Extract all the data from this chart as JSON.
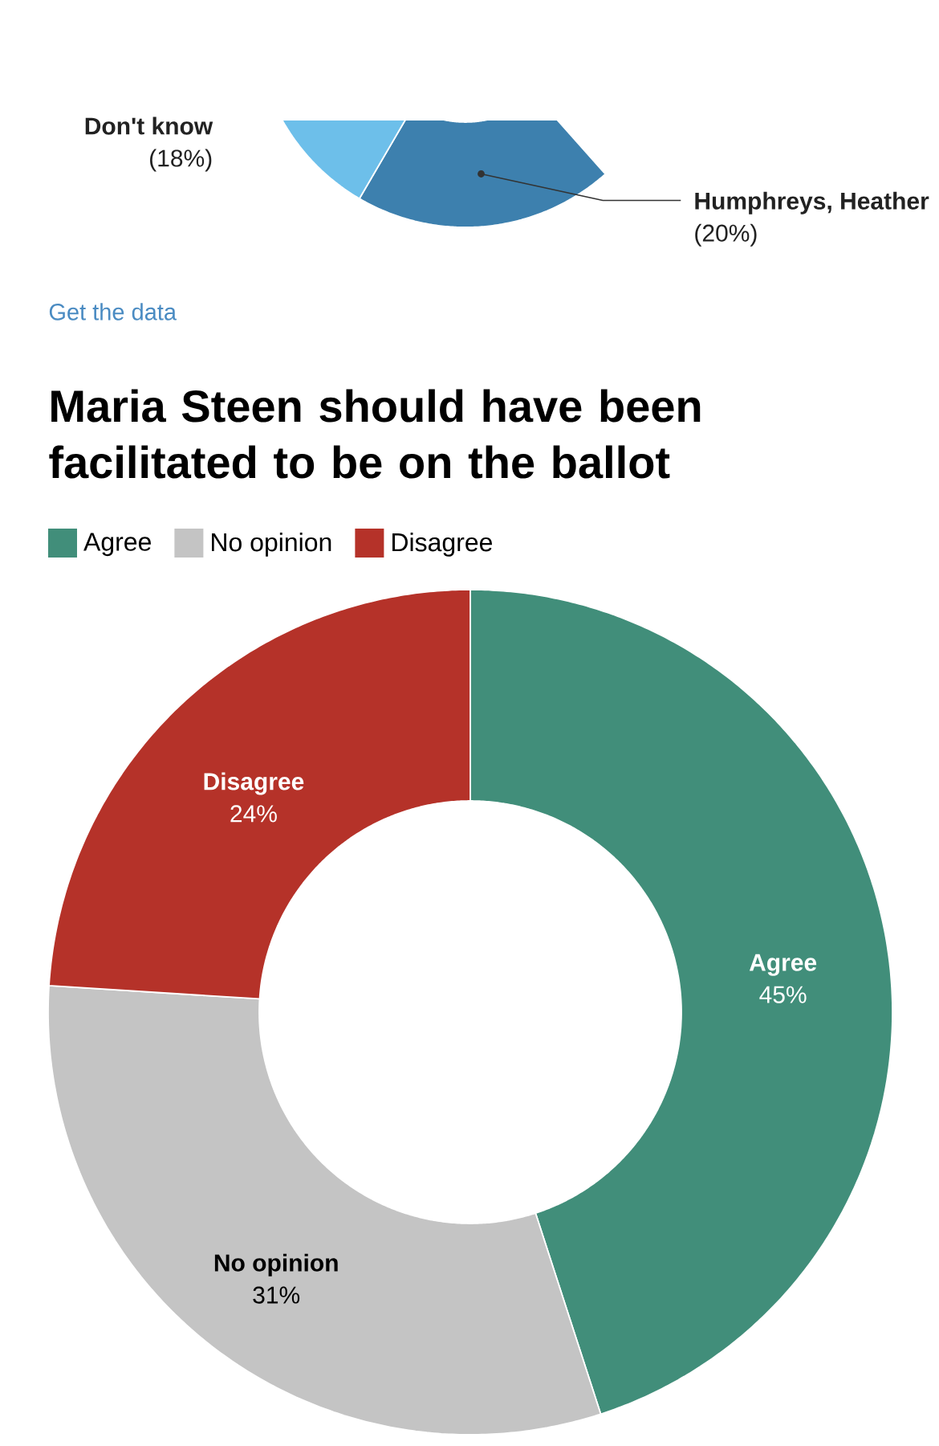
{
  "chart_data": [
    {
      "type": "donut",
      "categories": [
        "Humphreys, Heather",
        "Don't know"
      ],
      "values": [
        20,
        18
      ],
      "colors": [
        "#3d80ae",
        "#6dbfea"
      ],
      "value_labels": [
        "(20%)",
        "(18%)"
      ],
      "annotations": [
        "Get the data"
      ]
    },
    {
      "type": "donut",
      "title": "Maria Steen should have been facilitated to be on the ballot",
      "categories": [
        "Agree",
        "No opinion",
        "Disagree"
      ],
      "values": [
        45,
        31,
        24
      ],
      "colors": [
        "#418e7a",
        "#c4c4c4",
        "#b53229"
      ],
      "value_labels": [
        "45%",
        "31%",
        "24%"
      ],
      "legend": "top left"
    }
  ]
}
